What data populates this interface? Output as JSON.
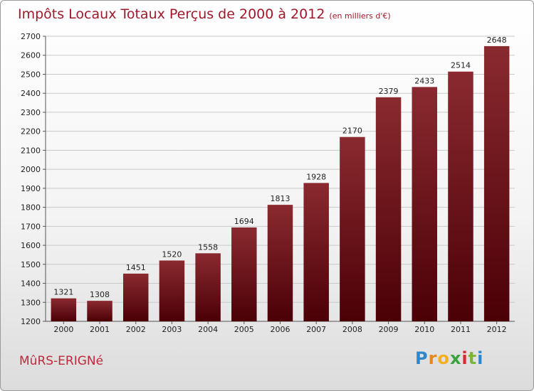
{
  "header": {
    "title": "Impôts Locaux Totaux Perçus de 2000 à 2012",
    "subtitle": "(en milliers d'€)"
  },
  "commune": "MûRS-ERIGNé",
  "logo": {
    "letters": [
      "P",
      "r",
      "o",
      "x",
      "i",
      "t",
      "i"
    ]
  },
  "colors": {
    "bar_top": "#8a2a30",
    "bar_bottom": "#4a0006",
    "title": "#a0192a"
  },
  "chart_data": {
    "type": "bar",
    "title": "Impôts Locaux Totaux Perçus de 2000 à 2012",
    "subtitle": "(en milliers d'€)",
    "xlabel": "",
    "ylabel": "",
    "categories": [
      "2000",
      "2001",
      "2002",
      "2003",
      "2004",
      "2005",
      "2006",
      "2007",
      "2008",
      "2009",
      "2010",
      "2011",
      "2012"
    ],
    "values": [
      1321,
      1308,
      1451,
      1520,
      1558,
      1694,
      1813,
      1928,
      2170,
      2379,
      2433,
      2514,
      2648
    ],
    "ylim": [
      1200,
      2700
    ],
    "yticks": [
      1200,
      1300,
      1400,
      1500,
      1600,
      1700,
      1800,
      1900,
      2000,
      2100,
      2200,
      2300,
      2400,
      2500,
      2600,
      2700
    ],
    "grid": true,
    "legend": "none"
  }
}
